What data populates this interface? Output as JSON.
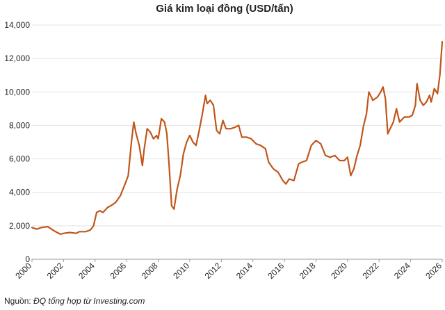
{
  "chart_data": {
    "type": "line",
    "title": "Giá kim loại đồng (USD/tấn)",
    "xlabel": "",
    "ylabel": "",
    "xlim": [
      2000,
      2026
    ],
    "ylim": [
      0,
      14000
    ],
    "y_ticks": [
      0,
      2000,
      4000,
      6000,
      8000,
      10000,
      12000,
      14000
    ],
    "y_tick_labels": [
      "0",
      "2,000",
      "4,000",
      "6,000",
      "8,000",
      "10,000",
      "12,000",
      "14,000"
    ],
    "x_ticks": [
      2000,
      2002,
      2004,
      2006,
      2008,
      2010,
      2012,
      2014,
      2016,
      2018,
      2020,
      2022,
      2024,
      2026
    ],
    "x_tick_labels": [
      "2000",
      "2002",
      "2004",
      "2006",
      "2008",
      "2010",
      "2012",
      "2014",
      "2016",
      "2018",
      "2020",
      "2022",
      "2024",
      "2026"
    ],
    "grid": "horizontal",
    "legend": "none",
    "line_color": "#c0561a",
    "series": [
      {
        "x": [
          2000.0,
          2000.3,
          2000.6,
          2001.0,
          2001.4,
          2001.8,
          2002.0,
          2002.4,
          2002.8,
          2003.0,
          2003.4,
          2003.7,
          2003.9,
          2004.1,
          2004.3,
          2004.5,
          2004.8,
          2005.0,
          2005.3,
          2005.6,
          2005.9,
          2006.1,
          2006.3,
          2006.45,
          2006.6,
          2006.8,
          2007.0,
          2007.1,
          2007.3,
          2007.5,
          2007.7,
          2007.9,
          2008.0,
          2008.2,
          2008.4,
          2008.55,
          2008.7,
          2008.85,
          2009.0,
          2009.2,
          2009.4,
          2009.6,
          2009.8,
          2010.0,
          2010.2,
          2010.4,
          2010.6,
          2010.8,
          2011.0,
          2011.1,
          2011.3,
          2011.5,
          2011.7,
          2011.9,
          2012.1,
          2012.3,
          2012.6,
          2012.9,
          2013.1,
          2013.3,
          2013.6,
          2013.9,
          2014.2,
          2014.5,
          2014.8,
          2015.0,
          2015.3,
          2015.6,
          2015.9,
          2016.1,
          2016.3,
          2016.6,
          2016.9,
          2017.1,
          2017.4,
          2017.7,
          2018.0,
          2018.3,
          2018.6,
          2018.9,
          2019.2,
          2019.5,
          2019.8,
          2020.0,
          2020.2,
          2020.4,
          2020.6,
          2020.8,
          2021.0,
          2021.2,
          2021.35,
          2021.6,
          2021.9,
          2022.1,
          2022.25,
          2022.4,
          2022.55,
          2022.7,
          2022.9,
          2023.1,
          2023.3,
          2023.6,
          2023.9,
          2024.1,
          2024.3,
          2024.4,
          2024.6,
          2024.8,
          2025.0,
          2025.2,
          2025.3,
          2025.5,
          2025.7,
          2025.85,
          2026.0
        ],
        "y": [
          1900,
          1800,
          1900,
          1950,
          1700,
          1500,
          1550,
          1600,
          1550,
          1650,
          1650,
          1750,
          2000,
          2800,
          2900,
          2800,
          3100,
          3200,
          3400,
          3800,
          4500,
          5000,
          7000,
          8200,
          7500,
          6800,
          5600,
          6500,
          7800,
          7600,
          7200,
          7400,
          7200,
          8400,
          8200,
          7500,
          5500,
          3200,
          3000,
          4200,
          5000,
          6300,
          7000,
          7400,
          7000,
          6800,
          7700,
          8700,
          9800,
          9300,
          9500,
          9200,
          7700,
          7500,
          8300,
          7800,
          7800,
          7900,
          8000,
          7300,
          7300,
          7200,
          6900,
          6800,
          6600,
          5800,
          5400,
          5200,
          4700,
          4500,
          4800,
          4700,
          5700,
          5800,
          5900,
          6800,
          7100,
          6900,
          6200,
          6100,
          6200,
          5900,
          5900,
          6100,
          5000,
          5400,
          6200,
          6800,
          7900,
          8700,
          10000,
          9500,
          9700,
          10000,
          10300,
          9600,
          7500,
          7800,
          8200,
          9000,
          8200,
          8500,
          8500,
          8600,
          9200,
          10500,
          9500,
          9200,
          9400,
          9800,
          9400,
          10200,
          9900,
          11000,
          13000
        ]
      }
    ],
    "source_label": "Nguồn:",
    "source_text": "ĐQ tổng hợp từ Investing.com"
  }
}
